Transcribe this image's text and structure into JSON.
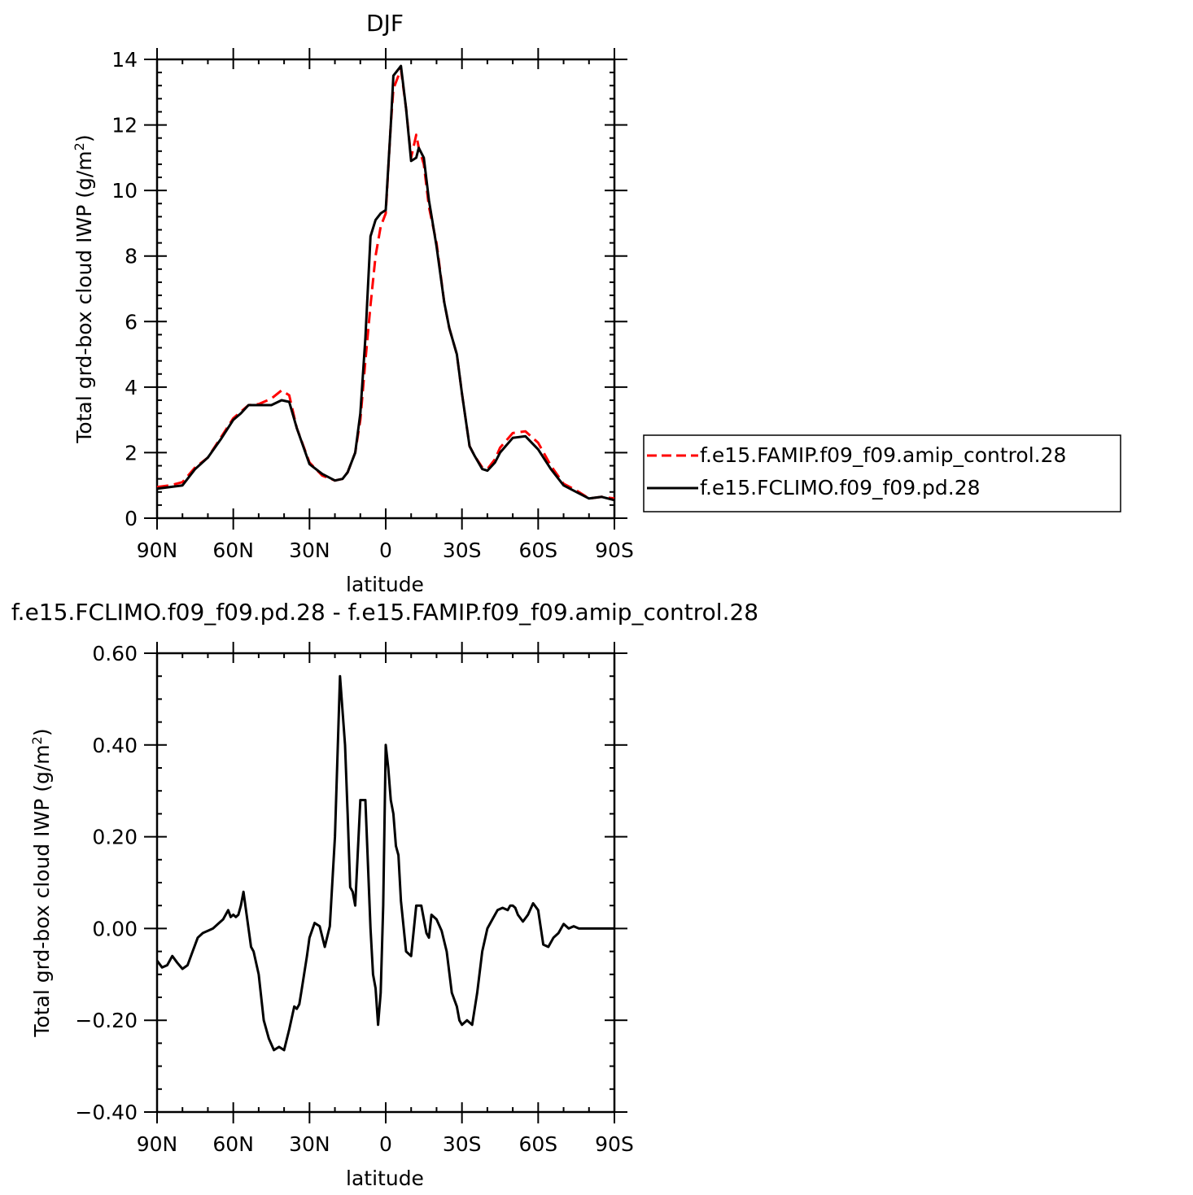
{
  "chart_data": [
    {
      "type": "line",
      "title": "DJF",
      "xlabel": "latitude",
      "ylabel": "Total grd-box cloud IWP (g/m",
      "ylabel_sup": "2",
      "ylabel_close": ")",
      "xlim": [
        90,
        -90
      ],
      "ylim": [
        0,
        14
      ],
      "xticks": [
        90,
        60,
        30,
        0,
        -30,
        -60,
        -90
      ],
      "xtick_labels": [
        "90N",
        "60N",
        "30N",
        "0",
        "30S",
        "60S",
        "90S"
      ],
      "yticks": [
        0,
        2,
        4,
        6,
        8,
        10,
        12,
        14
      ],
      "ytick_labels": [
        "0",
        "2",
        "4",
        "6",
        "8",
        "10",
        "12",
        "14"
      ],
      "legend_position": "right",
      "colors": {
        "series_1": "#ff0000",
        "series_2": "#000000"
      },
      "series": [
        {
          "name": "f.e15.FAMIP.f09_f09.amip_control.28",
          "style": "dashed",
          "x": [
            90,
            85,
            80,
            75,
            70,
            65,
            60,
            57,
            54,
            50,
            45,
            41,
            38,
            35,
            30,
            25,
            20,
            17,
            15,
            12,
            10,
            8,
            6,
            4,
            2,
            0,
            -2,
            -3,
            -5,
            -6,
            -8,
            -10,
            -12,
            -13,
            -15,
            -17,
            -20,
            -23,
            -25,
            -28,
            -30,
            -33,
            -35,
            -38,
            -40,
            -43,
            -45,
            -50,
            -55,
            -60,
            -65,
            -70,
            -75,
            -80,
            -85,
            -90
          ],
          "y": [
            0.95,
            1.0,
            1.1,
            1.55,
            1.85,
            2.45,
            3.05,
            3.25,
            3.45,
            3.48,
            3.65,
            3.9,
            3.75,
            2.75,
            1.7,
            1.3,
            1.15,
            1.2,
            1.4,
            2.0,
            3.0,
            4.8,
            6.5,
            8.0,
            8.9,
            9.3,
            12.0,
            13.1,
            13.5,
            13.7,
            12.5,
            11.0,
            11.7,
            11.3,
            10.8,
            9.5,
            8.4,
            6.6,
            5.8,
            5.0,
            3.8,
            2.2,
            1.9,
            1.55,
            1.5,
            1.8,
            2.15,
            2.6,
            2.65,
            2.3,
            1.6,
            1.05,
            0.85,
            0.6,
            0.65,
            0.6
          ]
        },
        {
          "name": "f.e15.FCLIMO.f09_f09.pd.28",
          "style": "solid",
          "x": [
            90,
            85,
            80,
            75,
            70,
            65,
            60,
            57,
            54,
            50,
            45,
            41,
            38,
            35,
            30,
            25,
            20,
            17,
            15,
            12,
            10,
            8,
            6,
            4,
            2,
            0,
            -2,
            -3,
            -5,
            -6,
            -8,
            -10,
            -12,
            -13,
            -15,
            -17,
            -20,
            -23,
            -25,
            -28,
            -30,
            -33,
            -35,
            -38,
            -40,
            -43,
            -45,
            -50,
            -55,
            -60,
            -65,
            -70,
            -75,
            -80,
            -85,
            -90
          ],
          "y": [
            0.9,
            0.95,
            1.0,
            1.5,
            1.85,
            2.4,
            3.0,
            3.2,
            3.45,
            3.45,
            3.45,
            3.6,
            3.55,
            2.75,
            1.65,
            1.35,
            1.15,
            1.2,
            1.4,
            2.0,
            3.2,
            5.5,
            8.6,
            9.1,
            9.3,
            9.4,
            12.0,
            13.5,
            13.7,
            13.8,
            12.5,
            10.9,
            11.0,
            11.3,
            11.0,
            9.7,
            8.3,
            6.6,
            5.8,
            5.0,
            3.8,
            2.2,
            1.9,
            1.5,
            1.45,
            1.7,
            2.0,
            2.45,
            2.5,
            2.1,
            1.5,
            1.0,
            0.8,
            0.6,
            0.65,
            0.55
          ]
        }
      ]
    },
    {
      "type": "line",
      "title": "f.e15.FCLIMO.f09_f09.pd.28 - f.e15.FAMIP.f09_f09.amip_control.28",
      "xlabel": "latitude",
      "ylabel": "Total grd-box cloud IWP (g/m",
      "ylabel_sup": "2",
      "ylabel_close": ")",
      "xlim": [
        90,
        -90
      ],
      "ylim": [
        -0.4,
        0.6
      ],
      "xticks": [
        90,
        60,
        30,
        0,
        -30,
        -60,
        -90
      ],
      "xtick_labels": [
        "90N",
        "60N",
        "30N",
        "0",
        "30S",
        "60S",
        "90S"
      ],
      "yticks": [
        -0.4,
        -0.2,
        0.0,
        0.2,
        0.4,
        0.6
      ],
      "ytick_labels": [
        "−0.40",
        "−0.20",
        "0.00",
        "0.20",
        "0.40",
        "0.60"
      ],
      "colors": {
        "series_1": "#000000"
      },
      "series": [
        {
          "style": "solid",
          "x": [
            90,
            88,
            86,
            84,
            82,
            80,
            78,
            76,
            74,
            72,
            70,
            68,
            66,
            64,
            62,
            61,
            60,
            59,
            58,
            57,
            56,
            54,
            53,
            52,
            50,
            48,
            46,
            44,
            42,
            40,
            38,
            36,
            35,
            34,
            33,
            31,
            30,
            28,
            26,
            24,
            22,
            20,
            18,
            16,
            15,
            14,
            13,
            12,
            10,
            8,
            6,
            5,
            4,
            3,
            2,
            1,
            0,
            -1,
            -2,
            -3,
            -4,
            -5,
            -6,
            -8,
            -10,
            -12,
            -14,
            -16,
            -17,
            -18,
            -20,
            -22,
            -24,
            -26,
            -28,
            -29,
            -30,
            -31,
            -32,
            -34,
            -36,
            -38,
            -40,
            -42,
            -44,
            -46,
            -48,
            -49,
            -50,
            -51,
            -52,
            -54,
            -56,
            -58,
            -60,
            -62,
            -64,
            -66,
            -68,
            -70,
            -72,
            -74,
            -76,
            -78,
            -80,
            -82,
            -84,
            -86,
            -88,
            -90
          ],
          "y": [
            -0.07,
            -0.085,
            -0.08,
            -0.06,
            -0.075,
            -0.088,
            -0.08,
            -0.05,
            -0.02,
            -0.01,
            -0.005,
            0.0,
            0.01,
            0.02,
            0.04,
            0.025,
            0.03,
            0.025,
            0.03,
            0.05,
            0.08,
            0.0,
            -0.04,
            -0.05,
            -0.1,
            -0.2,
            -0.24,
            -0.265,
            -0.258,
            -0.265,
            -0.22,
            -0.17,
            -0.175,
            -0.165,
            -0.13,
            -0.06,
            -0.02,
            0.012,
            0.005,
            -0.04,
            0.005,
            0.2,
            0.55,
            0.4,
            0.25,
            0.09,
            0.08,
            0.05,
            0.28,
            0.28,
            0.0,
            -0.1,
            -0.13,
            -0.21,
            -0.14,
            0.05,
            0.4,
            0.35,
            0.28,
            0.25,
            0.18,
            0.16,
            0.06,
            -0.05,
            -0.06,
            0.05,
            0.05,
            -0.01,
            -0.02,
            0.03,
            0.02,
            -0.005,
            -0.05,
            -0.14,
            -0.17,
            -0.2,
            -0.21,
            -0.205,
            -0.2,
            -0.21,
            -0.14,
            -0.05,
            0.0,
            0.02,
            0.04,
            0.045,
            0.04,
            0.05,
            0.05,
            0.045,
            0.03,
            0.015,
            0.03,
            0.055,
            0.04,
            -0.035,
            -0.04,
            -0.02,
            -0.01,
            0.01,
            0.0,
            0.005,
            0.0,
            0.0,
            0.0,
            0.0,
            0.0,
            0.0,
            0.0,
            0.0
          ]
        }
      ]
    }
  ]
}
